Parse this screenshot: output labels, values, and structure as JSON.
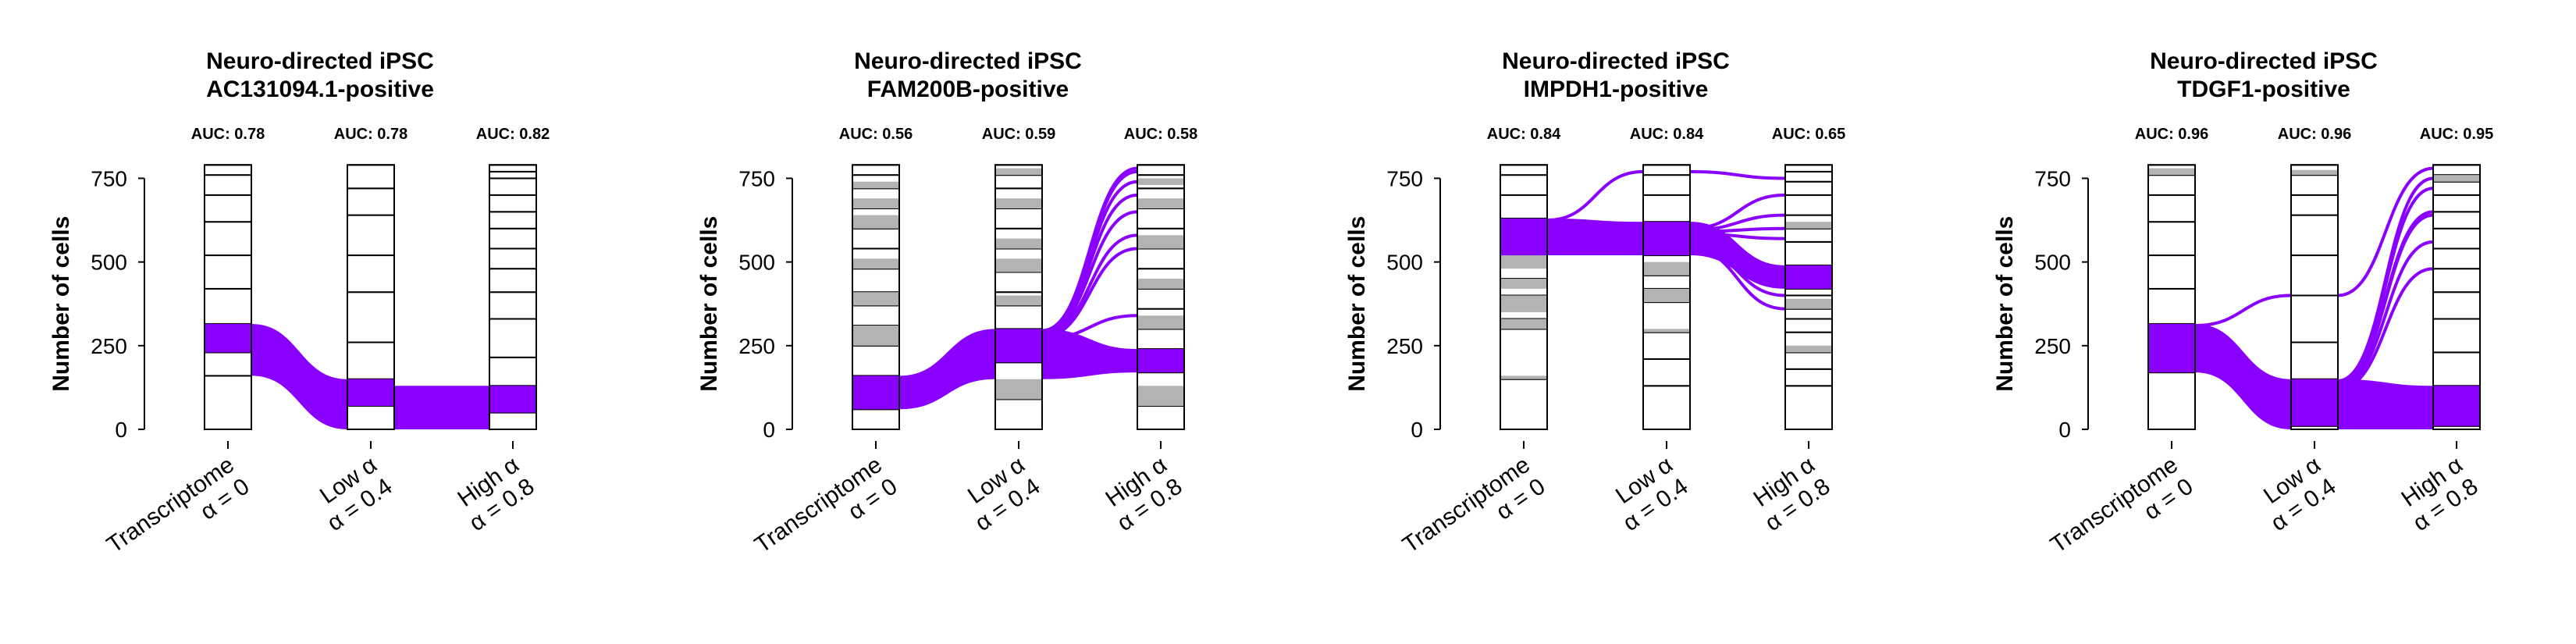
{
  "colors": {
    "highlight": "#8a00ff",
    "other": "#b3b3b3",
    "stroke": "#000000"
  },
  "chart_data": [
    {
      "type": "alluvial",
      "title": [
        "Neuro-directed iPSC",
        "AC131094.1-positive"
      ],
      "ylabel": "Number of cells",
      "ylim": [
        0,
        800
      ],
      "yticks": [
        0,
        250,
        500,
        750
      ],
      "columns": [
        {
          "label": "Transcriptome",
          "alpha": "α = 0",
          "auc": "AUC: 0.78",
          "segments": [
            [
              0,
              160
            ],
            [
              160,
              230
            ],
            [
              230,
              315
            ],
            [
              315,
              420
            ],
            [
              420,
              520
            ],
            [
              520,
              620
            ],
            [
              620,
              700
            ],
            [
              700,
              760
            ],
            [
              760,
              790
            ]
          ],
          "highlight": [
            [
              230,
              315
            ]
          ],
          "grey": []
        },
        {
          "label": "Low α",
          "alpha": "α = 0.4",
          "auc": "AUC: 0.78",
          "segments": [
            [
              0,
              70
            ],
            [
              70,
              150
            ],
            [
              150,
              260
            ],
            [
              260,
              410
            ],
            [
              410,
              520
            ],
            [
              520,
              640
            ],
            [
              640,
              720
            ],
            [
              720,
              790
            ]
          ],
          "highlight": [
            [
              70,
              150
            ]
          ],
          "grey": []
        },
        {
          "label": "High α",
          "alpha": "α = 0.8",
          "auc": "AUC: 0.82",
          "segments": [
            [
              0,
              50
            ],
            [
              50,
              130
            ],
            [
              130,
              215
            ],
            [
              215,
              330
            ],
            [
              330,
              410
            ],
            [
              410,
              480
            ],
            [
              480,
              540
            ],
            [
              540,
              600
            ],
            [
              600,
              650
            ],
            [
              650,
              700
            ],
            [
              700,
              750
            ],
            [
              750,
              770
            ],
            [
              770,
              790
            ]
          ],
          "highlight": [
            [
              50,
              130
            ]
          ],
          "grey": []
        }
      ],
      "flows": [
        {
          "from": 0,
          "y0": [
            160,
            315
          ],
          "to": 1,
          "y1": [
            0,
            150
          ]
        },
        {
          "from": 1,
          "y0": [
            0,
            130
          ],
          "to": 2,
          "y1": [
            0,
            130
          ]
        }
      ],
      "thin_flows": []
    },
    {
      "type": "alluvial",
      "title": [
        "Neuro-directed iPSC",
        "FAM200B-positive"
      ],
      "ylabel": "Number of cells",
      "ylim": [
        0,
        800
      ],
      "yticks": [
        0,
        250,
        500,
        750
      ],
      "columns": [
        {
          "label": "Transcriptome",
          "alpha": "α = 0",
          "auc": "AUC: 0.56",
          "segments": [
            [
              0,
              60
            ],
            [
              60,
              160
            ],
            [
              160,
              250
            ],
            [
              250,
              310
            ],
            [
              310,
              370
            ],
            [
              370,
              410
            ],
            [
              410,
              480
            ],
            [
              480,
              540
            ],
            [
              540,
              600
            ],
            [
              600,
              660
            ],
            [
              660,
              720
            ],
            [
              720,
              760
            ],
            [
              760,
              790
            ]
          ],
          "highlight": [
            [
              60,
              160
            ]
          ],
          "grey": [
            [
              250,
              310
            ],
            [
              370,
              410
            ],
            [
              480,
              510
            ],
            [
              600,
              640
            ],
            [
              660,
              690
            ],
            [
              720,
              740
            ]
          ]
        },
        {
          "label": "Low α",
          "alpha": "α = 0.4",
          "auc": "AUC: 0.59",
          "segments": [
            [
              0,
              90
            ],
            [
              90,
              200
            ],
            [
              200,
              300
            ],
            [
              300,
              370
            ],
            [
              370,
              410
            ],
            [
              410,
              470
            ],
            [
              470,
              540
            ],
            [
              540,
              600
            ],
            [
              600,
              660
            ],
            [
              660,
              720
            ],
            [
              720,
              760
            ],
            [
              760,
              790
            ]
          ],
          "highlight": [
            [
              200,
              300
            ]
          ],
          "grey": [
            [
              90,
              150
            ],
            [
              370,
              400
            ],
            [
              470,
              510
            ],
            [
              540,
              570
            ],
            [
              660,
              690
            ],
            [
              760,
              780
            ]
          ]
        },
        {
          "label": "High α",
          "alpha": "α = 0.8",
          "auc": "AUC: 0.58",
          "segments": [
            [
              0,
              70
            ],
            [
              70,
              170
            ],
            [
              170,
              240
            ],
            [
              240,
              300
            ],
            [
              300,
              360
            ],
            [
              360,
              420
            ],
            [
              420,
              480
            ],
            [
              480,
              540
            ],
            [
              540,
              600
            ],
            [
              600,
              660
            ],
            [
              660,
              720
            ],
            [
              720,
              760
            ],
            [
              760,
              790
            ]
          ],
          "highlight": [
            [
              170,
              240
            ]
          ],
          "grey": [
            [
              70,
              130
            ],
            [
              300,
              340
            ],
            [
              420,
              450
            ],
            [
              540,
              580
            ],
            [
              660,
              690
            ],
            [
              730,
              750
            ]
          ]
        }
      ],
      "flows": [
        {
          "from": 0,
          "y0": [
            60,
            160
          ],
          "to": 1,
          "y1": [
            150,
            300
          ]
        },
        {
          "from": 1,
          "y0": [
            150,
            300
          ],
          "to": 2,
          "y1": [
            170,
            240
          ]
        }
      ],
      "thin_flows": [
        {
          "from": 1,
          "y0": 270,
          "to": 2,
          "y1": 340
        },
        {
          "from": 1,
          "y0": 275,
          "to": 2,
          "y1": 540
        },
        {
          "from": 1,
          "y0": 280,
          "to": 2,
          "y1": 580
        },
        {
          "from": 1,
          "y0": 283,
          "to": 2,
          "y1": 650
        },
        {
          "from": 1,
          "y0": 286,
          "to": 2,
          "y1": 700
        },
        {
          "from": 1,
          "y0": 289,
          "to": 2,
          "y1": 740
        },
        {
          "from": 1,
          "y0": 292,
          "to": 2,
          "y1": 770
        },
        {
          "from": 1,
          "y0": 295,
          "to": 2,
          "y1": 780
        }
      ]
    },
    {
      "type": "alluvial",
      "title": [
        "Neuro-directed iPSC",
        "IMPDH1-positive"
      ],
      "ylabel": "Number of cells",
      "ylim": [
        0,
        800
      ],
      "yticks": [
        0,
        250,
        500,
        750
      ],
      "columns": [
        {
          "label": "Transcriptome",
          "alpha": "α = 0",
          "auc": "AUC: 0.84",
          "segments": [
            [
              0,
              150
            ],
            [
              150,
              300
            ],
            [
              300,
              330
            ],
            [
              330,
              400
            ],
            [
              400,
              450
            ],
            [
              450,
              520
            ],
            [
              520,
              630
            ],
            [
              630,
              700
            ],
            [
              700,
              760
            ],
            [
              760,
              790
            ]
          ],
          "highlight": [
            [
              520,
              630
            ]
          ],
          "grey": [
            [
              150,
              160
            ],
            [
              300,
              330
            ],
            [
              350,
              400
            ],
            [
              420,
              450
            ],
            [
              480,
              520
            ]
          ]
        },
        {
          "label": "Low α",
          "alpha": "α = 0.4",
          "auc": "AUC: 0.84",
          "segments": [
            [
              0,
              130
            ],
            [
              130,
              210
            ],
            [
              210,
              290
            ],
            [
              290,
              380
            ],
            [
              380,
              420
            ],
            [
              420,
              460
            ],
            [
              460,
              520
            ],
            [
              520,
              620
            ],
            [
              620,
              700
            ],
            [
              700,
              760
            ],
            [
              760,
              790
            ]
          ],
          "highlight": [
            [
              520,
              620
            ]
          ],
          "grey": [
            [
              290,
              300
            ],
            [
              380,
              420
            ],
            [
              460,
              500
            ]
          ]
        },
        {
          "label": "High α",
          "alpha": "α = 0.8",
          "auc": "AUC: 0.65",
          "segments": [
            [
              0,
              130
            ],
            [
              130,
              180
            ],
            [
              180,
              230
            ],
            [
              230,
              290
            ],
            [
              290,
              330
            ],
            [
              330,
              360
            ],
            [
              360,
              400
            ],
            [
              400,
              420
            ],
            [
              420,
              490
            ],
            [
              490,
              560
            ],
            [
              560,
              600
            ],
            [
              600,
              640
            ],
            [
              640,
              700
            ],
            [
              700,
              740
            ],
            [
              740,
              770
            ],
            [
              770,
              790
            ]
          ],
          "highlight": [
            [
              420,
              490
            ]
          ],
          "grey": [
            [
              230,
              250
            ],
            [
              360,
              390
            ],
            [
              600,
              620
            ]
          ]
        }
      ],
      "flows": [
        {
          "from": 0,
          "y0": [
            520,
            630
          ],
          "to": 1,
          "y1": [
            520,
            620
          ]
        },
        {
          "from": 1,
          "y0": [
            520,
            620
          ],
          "to": 2,
          "y1": [
            420,
            490
          ]
        }
      ],
      "thin_flows": [
        {
          "from": 0,
          "y0": 625,
          "to": 1,
          "y1": 770
        },
        {
          "from": 1,
          "y0": 770,
          "to": 2,
          "y1": 750
        },
        {
          "from": 1,
          "y0": 600,
          "to": 2,
          "y1": 700
        },
        {
          "from": 1,
          "y0": 595,
          "to": 2,
          "y1": 640
        },
        {
          "from": 1,
          "y0": 590,
          "to": 2,
          "y1": 600
        },
        {
          "from": 1,
          "y0": 585,
          "to": 2,
          "y1": 570
        },
        {
          "from": 1,
          "y0": 540,
          "to": 2,
          "y1": 360
        },
        {
          "from": 1,
          "y0": 545,
          "to": 2,
          "y1": 400
        }
      ]
    },
    {
      "type": "alluvial",
      "title": [
        "Neuro-directed iPSC",
        "TDGF1-positive"
      ],
      "ylabel": "Number of cells",
      "ylim": [
        0,
        800
      ],
      "yticks": [
        0,
        250,
        500,
        750
      ],
      "columns": [
        {
          "label": "Transcriptome",
          "alpha": "α = 0",
          "auc": "AUC: 0.96",
          "segments": [
            [
              0,
              170
            ],
            [
              170,
              315
            ],
            [
              315,
              420
            ],
            [
              420,
              520
            ],
            [
              520,
              620
            ],
            [
              620,
              700
            ],
            [
              700,
              760
            ],
            [
              760,
              790
            ]
          ],
          "highlight": [
            [
              170,
              315
            ]
          ],
          "grey": [
            [
              760,
              780
            ]
          ]
        },
        {
          "label": "Low α",
          "alpha": "α = 0.4",
          "auc": "AUC: 0.96",
          "segments": [
            [
              0,
              10
            ],
            [
              10,
              150
            ],
            [
              150,
              260
            ],
            [
              260,
              400
            ],
            [
              400,
              520
            ],
            [
              520,
              640
            ],
            [
              640,
              700
            ],
            [
              700,
              760
            ],
            [
              760,
              790
            ]
          ],
          "highlight": [
            [
              10,
              150
            ]
          ],
          "grey": [
            [
              760,
              775
            ]
          ]
        },
        {
          "label": "High α",
          "alpha": "α = 0.8",
          "auc": "AUC: 0.95",
          "segments": [
            [
              0,
              10
            ],
            [
              10,
              130
            ],
            [
              130,
              230
            ],
            [
              230,
              330
            ],
            [
              330,
              410
            ],
            [
              410,
              480
            ],
            [
              480,
              540
            ],
            [
              540,
              600
            ],
            [
              600,
              650
            ],
            [
              650,
              700
            ],
            [
              700,
              740
            ],
            [
              740,
              760
            ],
            [
              760,
              790
            ]
          ],
          "highlight": [
            [
              10,
              130
            ]
          ],
          "grey": [
            [
              740,
              760
            ]
          ]
        }
      ],
      "flows": [
        {
          "from": 0,
          "y0": [
            170,
            315
          ],
          "to": 1,
          "y1": [
            0,
            150
          ]
        },
        {
          "from": 1,
          "y0": [
            0,
            150
          ],
          "to": 2,
          "y1": [
            0,
            130
          ]
        }
      ],
      "thin_flows": [
        {
          "from": 0,
          "y0": 310,
          "to": 1,
          "y1": 400
        },
        {
          "from": 1,
          "y0": 400,
          "to": 2,
          "y1": 780
        },
        {
          "from": 1,
          "y0": 145,
          "to": 2,
          "y1": 750
        },
        {
          "from": 1,
          "y0": 140,
          "to": 2,
          "y1": 720
        },
        {
          "from": 1,
          "y0": 135,
          "to": 2,
          "y1": 650
        },
        {
          "from": 1,
          "y0": 130,
          "to": 2,
          "y1": 640
        },
        {
          "from": 1,
          "y0": 125,
          "to": 2,
          "y1": 560
        },
        {
          "from": 1,
          "y0": 120,
          "to": 2,
          "y1": 480
        }
      ]
    }
  ]
}
